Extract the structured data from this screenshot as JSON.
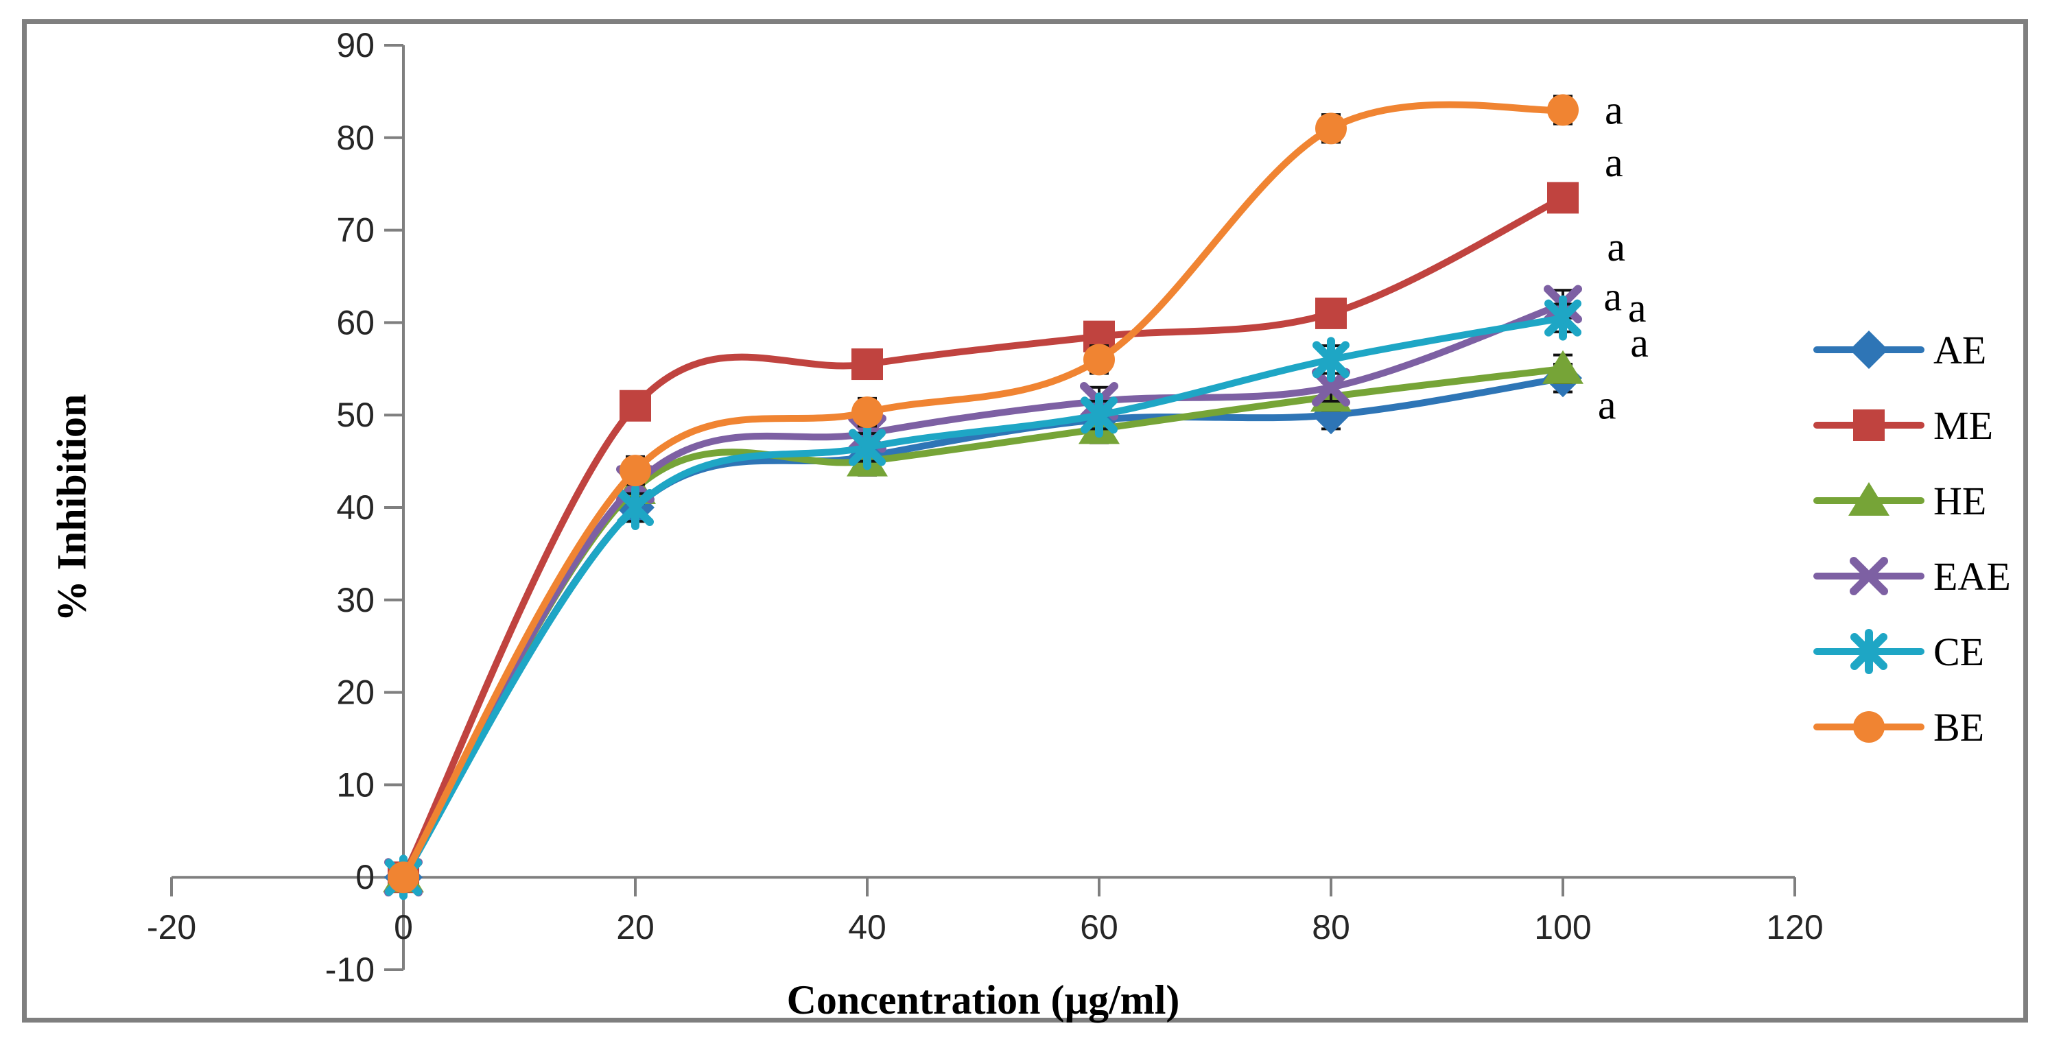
{
  "figure": {
    "background": "#ffffff",
    "frame_color": "#7f7f7f",
    "axis_color": "#7f7f7f",
    "tick_label_color": "#262626",
    "error_bar_color": "#111111"
  },
  "chart_data": {
    "type": "line",
    "title": "",
    "xlabel": "Concentration (µg/ml)",
    "ylabel": "% Inhibition",
    "x": [
      0,
      20,
      40,
      60,
      80,
      100
    ],
    "xlim": [
      -20,
      120
    ],
    "ylim": [
      -10,
      90
    ],
    "x_ticks": [
      -20,
      0,
      20,
      40,
      60,
      80,
      100,
      120
    ],
    "y_ticks": [
      -10,
      0,
      10,
      20,
      30,
      40,
      50,
      60,
      70,
      80,
      90
    ],
    "grid": false,
    "legend_position": "right",
    "line_smoothing": true,
    "error_bar_half_height": 1.5,
    "series": [
      {
        "name": "AE",
        "color": "#2E75B6",
        "marker": "diamond",
        "values": [
          0,
          40,
          45.5,
          49.5,
          50,
          54
        ]
      },
      {
        "name": "ME",
        "color": "#C0433F",
        "marker": "square",
        "values": [
          0,
          51,
          55.5,
          58.5,
          61,
          73.5
        ]
      },
      {
        "name": "HE",
        "color": "#76A437",
        "marker": "triangle",
        "values": [
          0,
          42,
          45,
          48.5,
          52,
          55
        ]
      },
      {
        "name": "EAE",
        "color": "#7D60A3",
        "marker": "x",
        "values": [
          0,
          42.5,
          48,
          51.5,
          53,
          62
        ]
      },
      {
        "name": "CE",
        "color": "#1EA6C5",
        "marker": "asterisk",
        "values": [
          0,
          40,
          46.5,
          50,
          56,
          60.5
        ]
      },
      {
        "name": "BE",
        "color": "#F08432",
        "marker": "circle",
        "values": [
          0,
          44,
          50.3,
          56,
          81,
          83
        ]
      }
    ],
    "annotations": [
      {
        "text": "a",
        "x": 104.4,
        "y": 83.0
      },
      {
        "text": "a",
        "x": 104.4,
        "y": 77.3
      },
      {
        "text": "a",
        "x": 104.6,
        "y": 68.2
      },
      {
        "text": "a",
        "x": 104.3,
        "y": 62.8
      },
      {
        "text": "a",
        "x": 106.4,
        "y": 61.6
      },
      {
        "text": "a",
        "x": 106.6,
        "y": 57.8
      },
      {
        "text": "a",
        "x": 103.8,
        "y": 51.1
      }
    ]
  }
}
